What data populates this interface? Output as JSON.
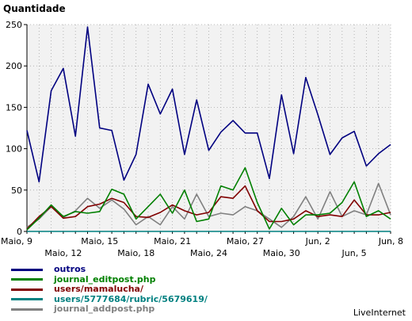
{
  "chart_data": {
    "type": "line",
    "ylabel": "Quantidade",
    "ylim": [
      0,
      250
    ],
    "yticks": [
      0,
      50,
      100,
      150,
      200,
      250
    ],
    "x": [
      "Maio, 9",
      "Maio, 10",
      "Maio, 11",
      "Maio, 12",
      "Maio, 13",
      "Maio, 14",
      "Maio, 15",
      "Maio, 16",
      "Maio, 17",
      "Maio, 18",
      "Maio, 19",
      "Maio, 20",
      "Maio, 21",
      "Maio, 22",
      "Maio, 23",
      "Maio, 24",
      "Maio, 25",
      "Maio, 26",
      "Maio, 27",
      "Maio, 28",
      "Maio, 29",
      "Maio, 30",
      "Maio, 31",
      "Jun, 1",
      "Jun, 2",
      "Jun, 3",
      "Jun, 4",
      "Jun, 5",
      "Jun, 6",
      "Jun, 7",
      "Jun, 8"
    ],
    "tick_labels_row1": [
      {
        "index": 0,
        "label": "Maio, 9"
      },
      {
        "index": 6,
        "label": "Maio, 15"
      },
      {
        "index": 12,
        "label": "Maio, 21"
      },
      {
        "index": 18,
        "label": "Maio, 27"
      },
      {
        "index": 24,
        "label": "Jun, 2"
      },
      {
        "index": 30,
        "label": "Jun, 8"
      }
    ],
    "tick_labels_row2": [
      {
        "index": 3,
        "label": "Maio, 12"
      },
      {
        "index": 9,
        "label": "Maio, 18"
      },
      {
        "index": 15,
        "label": "Maio, 24"
      },
      {
        "index": 21,
        "label": "Maio, 30"
      },
      {
        "index": 27,
        "label": "Jun, 5"
      }
    ],
    "grid": true,
    "legend_position": "bottom-left",
    "series": [
      {
        "name": "outros",
        "color": "#000080",
        "values": [
          122,
          60,
          170,
          197,
          115,
          247,
          125,
          122,
          62,
          93,
          178,
          142,
          172,
          93,
          159,
          98,
          120,
          134,
          119,
          119,
          64,
          165,
          94,
          186,
          141,
          93,
          113,
          121,
          79,
          94,
          105
        ]
      },
      {
        "name": "journal_editpost.php",
        "color": "#008000",
        "values": [
          2,
          16,
          32,
          18,
          24,
          22,
          24,
          51,
          45,
          15,
          30,
          45,
          22,
          50,
          12,
          15,
          55,
          50,
          77,
          35,
          3,
          28,
          8,
          20,
          20,
          22,
          35,
          60,
          18,
          25,
          15
        ]
      },
      {
        "name": "users/mamalucha/",
        "color": "#800000",
        "values": [
          3,
          18,
          30,
          16,
          18,
          30,
          33,
          40,
          35,
          18,
          17,
          23,
          32,
          25,
          20,
          23,
          42,
          40,
          55,
          25,
          12,
          12,
          15,
          25,
          18,
          20,
          18,
          38,
          20,
          20,
          23
        ]
      },
      {
        "name": "users/5777684/rubric/5679619/",
        "color": "#008080",
        "values": [
          0,
          0,
          0,
          0,
          0,
          0,
          0,
          0,
          0,
          0,
          0,
          0,
          0,
          0,
          0,
          0,
          0,
          0,
          0,
          0,
          0,
          0,
          0,
          0,
          0,
          0,
          0,
          0,
          0,
          0,
          0
        ]
      },
      {
        "name": "journal_addpost.php",
        "color": "#808080",
        "values": [
          5,
          15,
          30,
          17,
          25,
          40,
          28,
          38,
          27,
          8,
          18,
          8,
          30,
          15,
          45,
          18,
          22,
          20,
          30,
          25,
          15,
          5,
          18,
          42,
          15,
          48,
          18,
          25,
          20,
          58,
          20
        ]
      }
    ]
  },
  "branding": {
    "text": "LiveInternet"
  }
}
